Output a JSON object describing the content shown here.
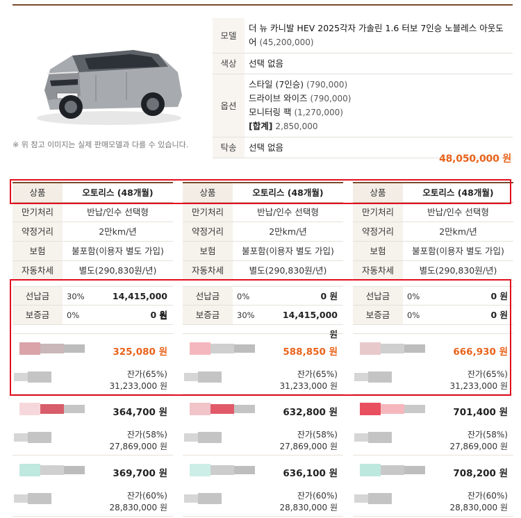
{
  "header": {
    "disclaimer": "※ 위 참고 이미지는 실제 판매모델과 다를 수 있습니다.",
    "spec": {
      "model_label": "모델",
      "model_name": "더 뉴 카니발 HEV 2025각자 가솔린 1.6 터보 7인승 노블레스 아웃도어",
      "model_price": "(45,200,000)",
      "color_label": "색상",
      "color_value": "선택 없음",
      "option_label": "옵션",
      "options": [
        {
          "name": "스타일 (7인승)",
          "price": "(790,000)"
        },
        {
          "name": "드라이브 와이즈",
          "price": "(790,000)"
        },
        {
          "name": "모니터링 팩",
          "price": "(1,270,000)"
        }
      ],
      "option_total_label": "[합계]",
      "option_total_value": "2,850,000",
      "consign_label": "탁송",
      "consign_value": "선택 없음"
    },
    "grand_total": "48,050,000 원"
  },
  "columns": [
    {
      "product_label": "상품",
      "product": "오토리스 (48개월)",
      "rows": [
        {
          "k": "만기처리",
          "v": "반납/인수 선택형"
        },
        {
          "k": "약정거리",
          "v": "2만km/년"
        },
        {
          "k": "보험",
          "v": "불포함(이용자 별도 가입)"
        },
        {
          "k": "자동차세",
          "v": "별도(290,830원/년)"
        }
      ],
      "prepay": {
        "k": "선납금",
        "pct": "30%",
        "amt": "14,415,000 원"
      },
      "deposit": {
        "k": "보증금",
        "pct": "0%",
        "amt": "0 원"
      },
      "offers": [
        {
          "monthly": "325,080 원",
          "resid_label": "잔가(65%)",
          "resid_value": "31,233,000 원"
        },
        {
          "monthly": "364,700 원",
          "resid_label": "잔가(58%)",
          "resid_value": "27,869,000 원"
        },
        {
          "monthly": "369,700 원",
          "resid_label": "잔가(60%)",
          "resid_value": "28,830,000 원"
        }
      ]
    },
    {
      "product_label": "상품",
      "product": "오토리스 (48개월)",
      "rows": [
        {
          "k": "만기처리",
          "v": "반납/인수 선택형"
        },
        {
          "k": "약정거리",
          "v": "2만km/년"
        },
        {
          "k": "보험",
          "v": "불포함(이용자 별도 가입)"
        },
        {
          "k": "자동차세",
          "v": "별도(290,830원/년)"
        }
      ],
      "prepay": {
        "k": "선납금",
        "pct": "0%",
        "amt": "0 원"
      },
      "deposit": {
        "k": "보증금",
        "pct": "30%",
        "amt": "14,415,000 원"
      },
      "offers": [
        {
          "monthly": "588,850 원",
          "resid_label": "잔가(65%)",
          "resid_value": "31,233,000 원"
        },
        {
          "monthly": "632,800 원",
          "resid_label": "잔가(58%)",
          "resid_value": "27,869,000 원"
        },
        {
          "monthly": "636,100 원",
          "resid_label": "잔가(60%)",
          "resid_value": "28,830,000 원"
        }
      ]
    },
    {
      "product_label": "상품",
      "product": "오토리스 (48개월)",
      "rows": [
        {
          "k": "만기처리",
          "v": "반납/인수 선택형"
        },
        {
          "k": "약정거리",
          "v": "2만km/년"
        },
        {
          "k": "보험",
          "v": "불포함(이용자 별도 가입)"
        },
        {
          "k": "자동차세",
          "v": "별도(290,830원/년)"
        }
      ],
      "prepay": {
        "k": "선납금",
        "pct": "0%",
        "amt": "0 원"
      },
      "deposit": {
        "k": "보증금",
        "pct": "0%",
        "amt": "0 원"
      },
      "offers": [
        {
          "monthly": "666,930 원",
          "resid_label": "잔가(65%)",
          "resid_value": "31,233,000 원"
        },
        {
          "monthly": "701,400 원",
          "resid_label": "잔가(58%)",
          "resid_value": "27,869,000 원"
        },
        {
          "monthly": "708,200 원",
          "resid_label": "잔가(60%)",
          "resid_value": "28,830,000 원"
        }
      ]
    }
  ],
  "colors": {
    "accent_orange": "#e8631b",
    "brown_rule": "#7a4a2c",
    "highlight_red": "#e10e1e",
    "label_bg": "#f6f2ec"
  }
}
